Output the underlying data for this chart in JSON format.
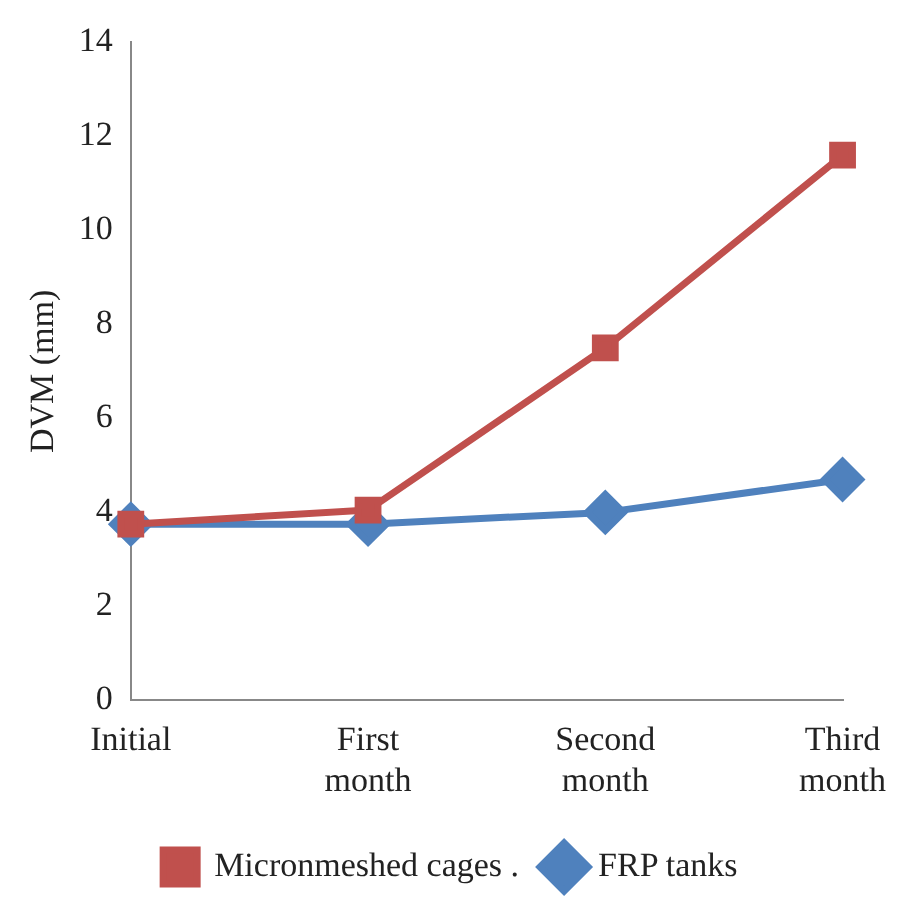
{
  "chart_data": {
    "type": "line",
    "ylabel": "DVM (mm)",
    "categories": [
      "Initial",
      "First month",
      "Second month",
      "Third month"
    ],
    "series": [
      {
        "name": "Micronmeshed cages .",
        "color": "#c0504d",
        "marker": "square",
        "values": [
          3.75,
          4.05,
          7.5,
          11.6
        ]
      },
      {
        "name": "FRP tanks",
        "color": "#4f81bd",
        "marker": "diamond",
        "values": [
          3.75,
          3.75,
          4.0,
          4.7
        ]
      }
    ],
    "ylim": [
      0,
      14
    ],
    "yticks": [
      0,
      2,
      4,
      6,
      8,
      10,
      12,
      14
    ],
    "grid": false,
    "legend": "bottom",
    "line_style": "solid"
  }
}
